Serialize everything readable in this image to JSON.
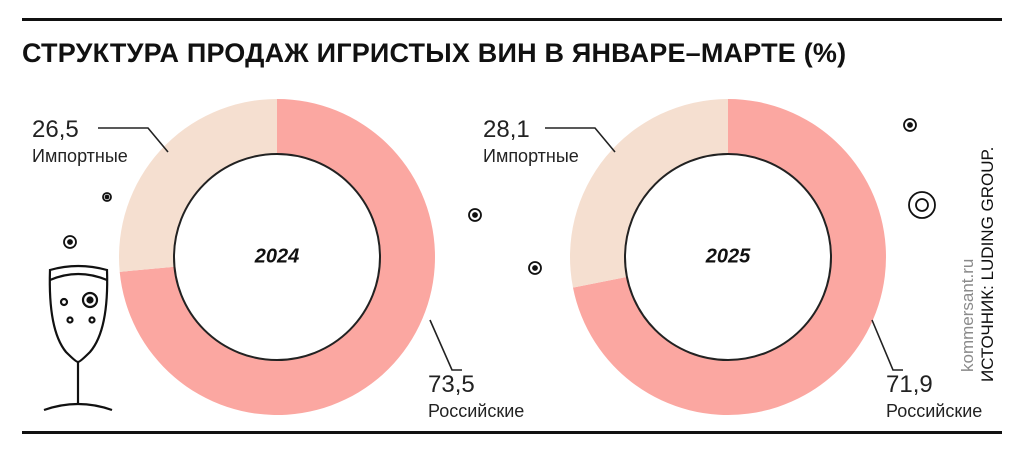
{
  "title": "СТРУКТУРА ПРОДАЖ ИГРИСТЫХ ВИН В ЯНВАРЕ–МАРТЕ (%)",
  "source": "ИСТОЧНИК: LUDING GROUP.",
  "site": "kommersant.ru",
  "colors": {
    "imported": "#f5dfd0",
    "russian": "#fba7a1",
    "outline": "#222222"
  },
  "chart_data": [
    {
      "type": "pie",
      "center_label": "2024",
      "slices": [
        {
          "label": "Импортные",
          "value": 26.5,
          "value_text": "26,5"
        },
        {
          "label": "Российские",
          "value": 73.5,
          "value_text": "73,5"
        }
      ]
    },
    {
      "type": "pie",
      "center_label": "2025",
      "slices": [
        {
          "label": "Импортные",
          "value": 28.1,
          "value_text": "28,1"
        },
        {
          "label": "Российские",
          "value": 71.9,
          "value_text": "71,9"
        }
      ]
    }
  ]
}
